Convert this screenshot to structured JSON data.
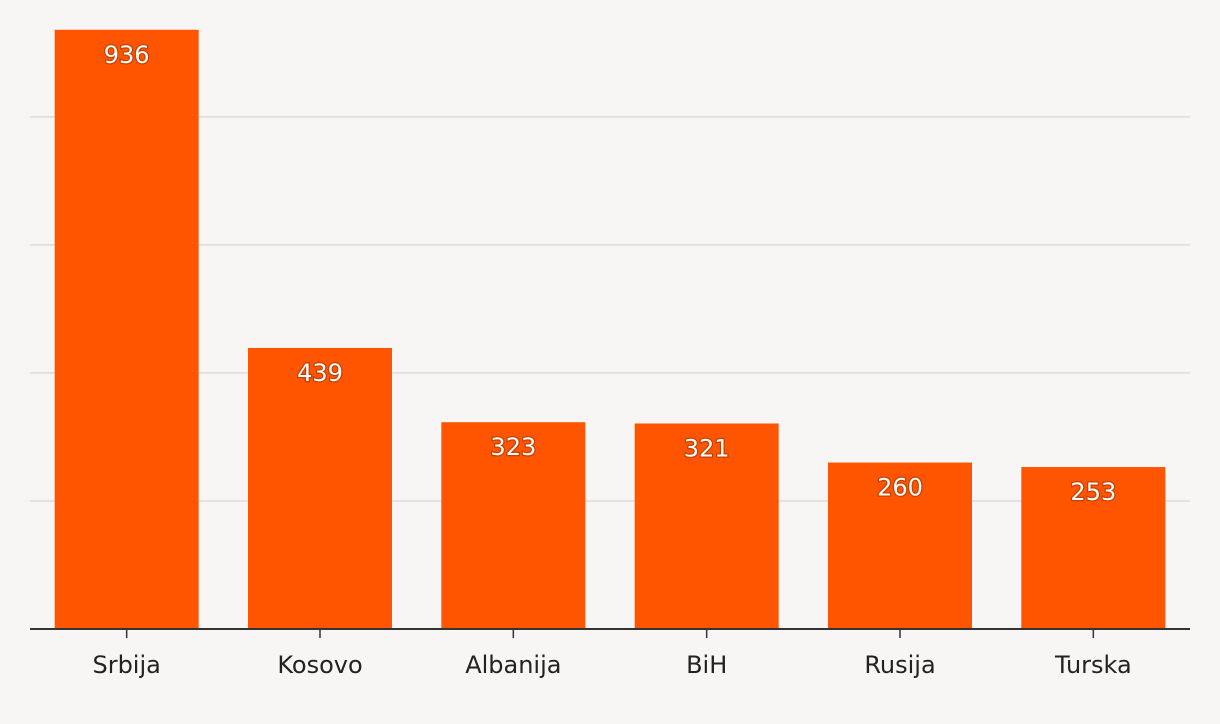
{
  "chart_data": {
    "type": "bar",
    "categories": [
      "Srbija",
      "Kosovo",
      "Albanija",
      "BiH",
      "Rusija",
      "Turska"
    ],
    "values": [
      936,
      439,
      323,
      321,
      260,
      253
    ],
    "title": "",
    "xlabel": "",
    "ylabel": "",
    "ylim": [
      0,
      950
    ],
    "y_gridlines": [
      200,
      400,
      600,
      800
    ],
    "grid": true,
    "legend": "none",
    "bar_color": "#ff5500",
    "data_labels": true
  }
}
